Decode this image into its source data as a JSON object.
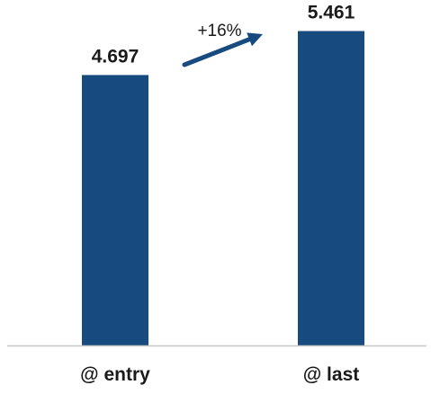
{
  "chart_data": {
    "type": "bar",
    "categories": [
      "@ entry",
      "@ last"
    ],
    "values": [
      4.697,
      5.461
    ],
    "value_labels": [
      "4.697",
      "5.461"
    ],
    "ylim": [
      0,
      6
    ],
    "grid": false,
    "legend": "none",
    "title": "",
    "xlabel": "",
    "ylabel": "",
    "annotation": {
      "text": "+16%",
      "type": "growth-arrow",
      "from": "@ entry",
      "to": "@ last"
    },
    "colors": {
      "bar": "#174a7e",
      "axis": "#c8c8c8",
      "text": "#1a1a1a"
    }
  }
}
